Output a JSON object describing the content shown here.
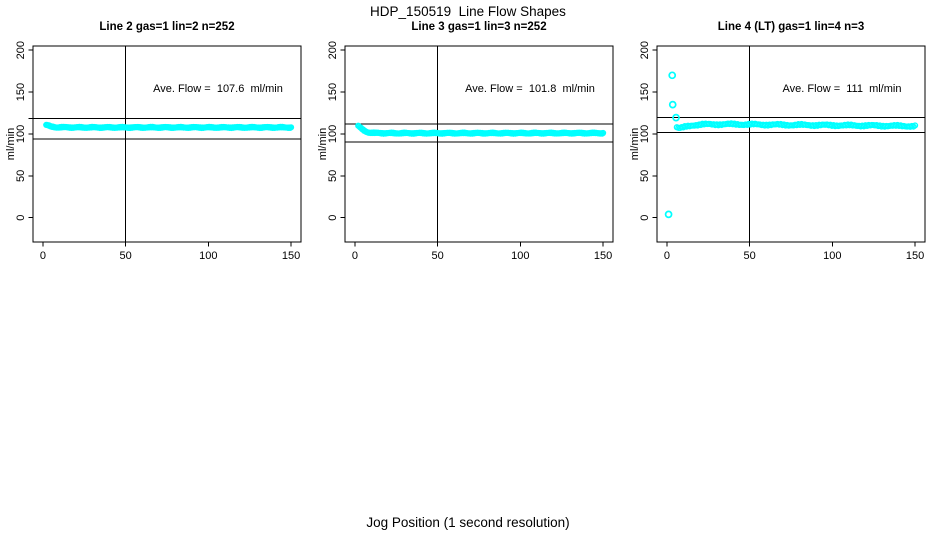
{
  "figure": {
    "main_title": "HDP_150519  Line Flow Shapes",
    "x_axis_label": "Jog Position (1 second resolution)"
  },
  "chart_data": {
    "type": "scatter",
    "title": "HDP_150519  Line Flow Shapes",
    "xlabel": "Jog Position (1 second resolution)",
    "ylabel": "ml/min",
    "point_color": "#00ffff",
    "line_color": "#000000",
    "x_ticks": [
      0,
      50,
      100,
      150
    ],
    "y_ticks": [
      0,
      50,
      100,
      150,
      200
    ],
    "xlim": [
      -6,
      156
    ],
    "ylim": [
      -29,
      205
    ],
    "legend": "none",
    "grid": false,
    "panels": [
      {
        "title": "Line 2 gas=1 lin=2 n=252",
        "annotation": "Ave. Flow =  107.6  ml/min",
        "ave_flow_ml_min": 107.6,
        "n": 252,
        "ylabel": "ml/min",
        "vline_x": 50,
        "hlines_y": [
          118.5,
          94
        ],
        "extra_y_ticks": [
          118.5
        ],
        "series": {
          "x_start": 2,
          "x_end": 150,
          "n_points": 252,
          "jitter": 0.7,
          "anchors": [
            [
              2,
              110.8
            ],
            [
              3,
              110.2
            ],
            [
              5,
              108.6
            ],
            [
              8,
              108.0
            ],
            [
              20,
              107.8
            ],
            [
              150,
              107.8
            ]
          ]
        },
        "outliers": []
      },
      {
        "title": "Line 3 gas=1 lin=3 n=252",
        "annotation": "Ave. Flow =  101.8  ml/min",
        "ave_flow_ml_min": 101.8,
        "n": 252,
        "ylabel": "ml/min",
        "vline_x": 50,
        "hlines_y": [
          112,
          90.5
        ],
        "extra_y_ticks": [],
        "series": {
          "x_start": 2,
          "x_end": 150,
          "n_points": 252,
          "jitter": 0.7,
          "anchors": [
            [
              2,
              109.8
            ],
            [
              3,
              108.0
            ],
            [
              4,
              106.2
            ],
            [
              5,
              104.6
            ],
            [
              6,
              103.3
            ],
            [
              8,
              101.9
            ],
            [
              12,
              101.1
            ],
            [
              20,
              100.9
            ],
            [
              150,
              101.0
            ]
          ]
        },
        "outliers": []
      },
      {
        "title": "Line 4 (LT) gas=1 lin=4 n=3",
        "annotation": "Ave. Flow =  111  ml/min",
        "ave_flow_ml_min": 111,
        "n": 3,
        "ylabel": "ml/min",
        "vline_x": 50,
        "hlines_y": [
          119.5,
          101.5
        ],
        "extra_y_ticks": [],
        "series": {
          "x_start": 6,
          "x_end": 150,
          "n_points": 150,
          "jitter": 1.2,
          "anchors": [
            [
              6,
              108.0
            ],
            [
              7,
              106.8
            ],
            [
              9,
              107.2
            ],
            [
              12,
              109.0
            ],
            [
              16,
              110.6
            ],
            [
              22,
              111.4
            ],
            [
              40,
              111.6
            ],
            [
              55,
              111.2
            ],
            [
              80,
              110.7
            ],
            [
              110,
              110.2
            ],
            [
              150,
              109.4
            ]
          ]
        },
        "outliers": [
          [
            1,
            4
          ],
          [
            3.2,
            170
          ],
          [
            3.5,
            135
          ],
          [
            5.5,
            119.5
          ]
        ]
      }
    ]
  }
}
